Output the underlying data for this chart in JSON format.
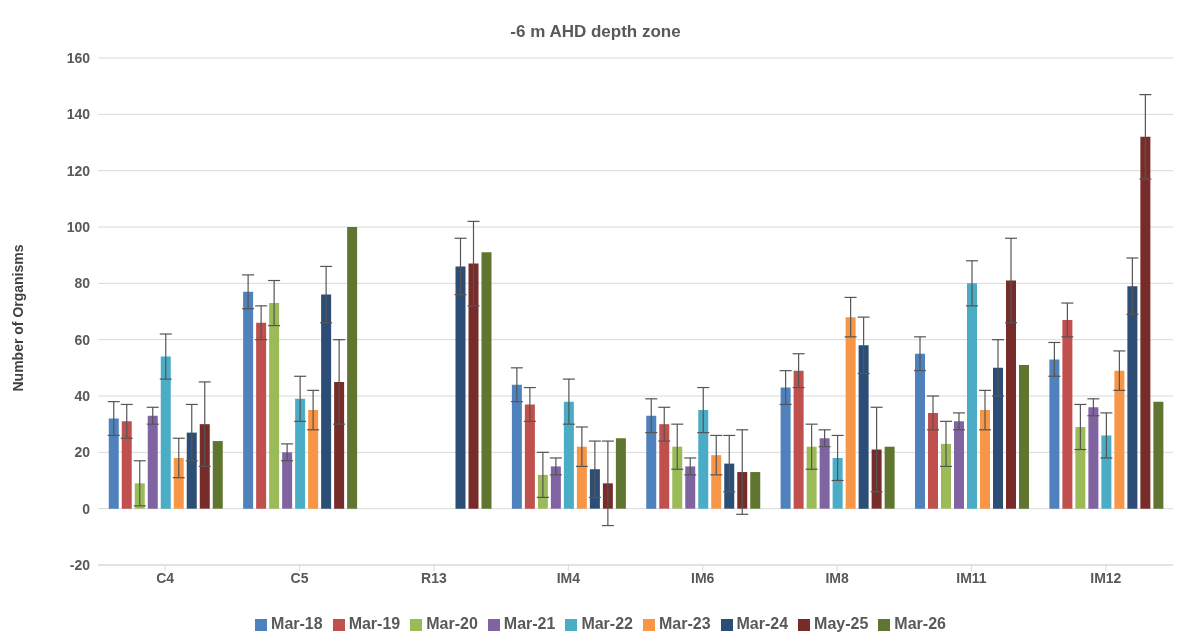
{
  "chart_data": {
    "type": "bar",
    "title": "-6 m AHD depth zone",
    "ylabel": "Number of Organisms",
    "categories": [
      "C4",
      "C5",
      "R13",
      "IM4",
      "IM6",
      "IM8",
      "IM11",
      "IM12"
    ],
    "series": [
      {
        "name": "Mar-18",
        "color": "#4f81bd",
        "values": [
          32,
          77,
          null,
          44,
          33,
          43,
          55,
          53
        ],
        "errors": [
          6,
          6,
          null,
          6,
          6,
          6,
          6,
          6
        ]
      },
      {
        "name": "Mar-19",
        "color": "#c0504d",
        "values": [
          31,
          66,
          null,
          37,
          30,
          49,
          34,
          67
        ],
        "errors": [
          6,
          6,
          null,
          6,
          6,
          6,
          6,
          6
        ]
      },
      {
        "name": "Mar-20",
        "color": "#9bbb59",
        "values": [
          9,
          73,
          null,
          12,
          22,
          22,
          23,
          29
        ],
        "errors": [
          8,
          8,
          null,
          8,
          8,
          8,
          8,
          8
        ]
      },
      {
        "name": "Mar-21",
        "color": "#8064a2",
        "values": [
          33,
          20,
          null,
          15,
          15,
          25,
          31,
          36
        ],
        "errors": [
          3,
          3,
          null,
          3,
          3,
          3,
          3,
          3
        ]
      },
      {
        "name": "Mar-22",
        "color": "#4bacc6",
        "values": [
          54,
          39,
          null,
          38,
          35,
          18,
          80,
          26
        ],
        "errors": [
          8,
          8,
          null,
          8,
          8,
          8,
          8,
          8
        ]
      },
      {
        "name": "Mar-23",
        "color": "#f79646",
        "values": [
          18,
          35,
          null,
          22,
          19,
          68,
          35,
          49
        ],
        "errors": [
          7,
          7,
          null,
          7,
          7,
          7,
          7,
          7
        ]
      },
      {
        "name": "Mar-24",
        "color": "#2c4d75",
        "values": [
          27,
          76,
          86,
          14,
          16,
          58,
          50,
          79
        ],
        "errors": [
          10,
          10,
          10,
          10,
          10,
          10,
          10,
          10
        ]
      },
      {
        "name": "May-25",
        "color": "#772c2a",
        "values": [
          30,
          45,
          87,
          9,
          13,
          21,
          81,
          132
        ],
        "errors": [
          15,
          15,
          15,
          15,
          15,
          15,
          15,
          15
        ]
      },
      {
        "name": "Mar-26",
        "color": "#5f7530",
        "values": [
          24,
          100,
          91,
          25,
          13,
          22,
          51,
          38
        ]
      }
    ],
    "ylim": [
      -20,
      160
    ],
    "yticks": [
      -20,
      0,
      20,
      40,
      60,
      80,
      100,
      120,
      140,
      160
    ],
    "grid": "y",
    "legend": "bottom"
  }
}
